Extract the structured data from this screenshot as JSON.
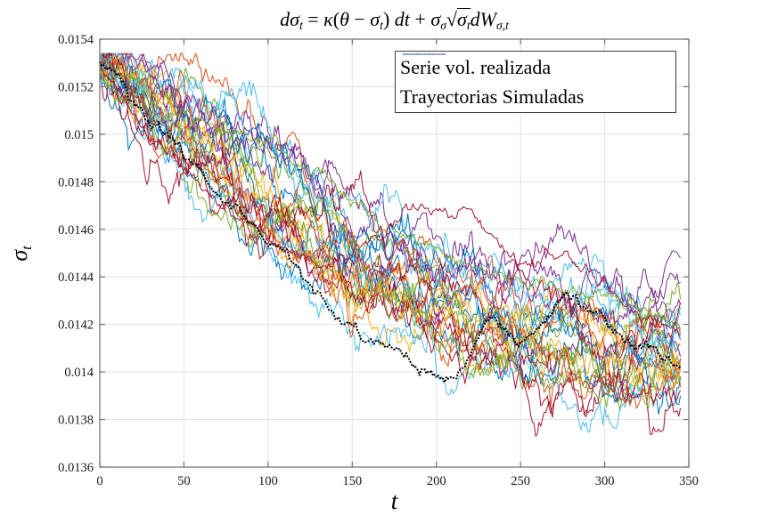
{
  "figure": {
    "title_plain": "dσt = κ(θ − σt) dt + σσ √σt dWσ,t",
    "title_parts": [
      {
        "text": "dσ",
        "style": "i"
      },
      {
        "text": "t",
        "style": "sub"
      },
      {
        "text": " = ",
        "style": "n"
      },
      {
        "text": "κ",
        "style": "i"
      },
      {
        "text": "(",
        "style": "n"
      },
      {
        "text": "θ",
        "style": "i"
      },
      {
        "text": " − ",
        "style": "n"
      },
      {
        "text": "σ",
        "style": "i"
      },
      {
        "text": "t",
        "style": "sub"
      },
      {
        "text": ") ",
        "style": "n"
      },
      {
        "text": "dt",
        "style": "i"
      },
      {
        "text": " + ",
        "style": "n"
      },
      {
        "text": "σ",
        "style": "i"
      },
      {
        "text": "σ",
        "style": "sub"
      },
      {
        "text": "√",
        "style": "n"
      },
      {
        "parts": [
          {
            "text": "σ",
            "style": "i"
          },
          {
            "text": "t",
            "style": "sub"
          }
        ]
      },
      {
        "text": "dW",
        "style": "i"
      },
      {
        "text": "σ,t",
        "style": "sub"
      }
    ],
    "x_label": "t",
    "y_label_parts": [
      {
        "text": "σ",
        "style": "i"
      },
      {
        "text": "t",
        "style": "sub"
      }
    ]
  },
  "legend": {
    "entries": [
      {
        "label": "Serie vol. realizada",
        "line_style": "dash-dot",
        "color": "#000000"
      },
      {
        "label": "Trayectorias Simuladas",
        "line_style": "solid",
        "color": "#7e96b2"
      }
    ]
  },
  "chart_data": {
    "type": "line",
    "title": "dσt = κ(θ − σt)dt + σσ√(σt)dWσ,t",
    "xlabel": "t",
    "ylabel": "σt",
    "xlim": [
      0,
      350
    ],
    "ylim": [
      0.0136,
      0.0154
    ],
    "grid": true,
    "legend_position": "top-right-inside",
    "x_ticks": [
      0,
      50,
      100,
      150,
      200,
      250,
      300,
      350
    ],
    "y_ticks": [
      {
        "value": 0.0136,
        "label": "0.0136"
      },
      {
        "value": 0.0138,
        "label": "0.0138"
      },
      {
        "value": 0.014,
        "label": "0.014"
      },
      {
        "value": 0.0142,
        "label": "0.0142"
      },
      {
        "value": 0.0144,
        "label": "0.0144"
      },
      {
        "value": 0.0146,
        "label": "0.0146"
      },
      {
        "value": 0.0148,
        "label": "0.0148"
      },
      {
        "value": 0.015,
        "label": "0.015"
      },
      {
        "value": 0.0152,
        "label": "0.0152"
      },
      {
        "value": 0.0154,
        "label": "0.0154"
      }
    ],
    "style": {
      "grid_color": "#e2e2e2",
      "axis_color": "#6e6e6e",
      "tick_label_color": "#1a1a1a",
      "background": "#ffffff"
    },
    "realized_series": {
      "name": "Serie vol. realizada",
      "style": "dotted",
      "color": "#000000",
      "t_end": 345,
      "keypoints": [
        [
          0,
          0.0153
        ],
        [
          8,
          0.01526
        ],
        [
          18,
          0.01516
        ],
        [
          24,
          0.0151
        ],
        [
          32,
          0.01505
        ],
        [
          40,
          0.015
        ],
        [
          48,
          0.01494
        ],
        [
          55,
          0.01488
        ],
        [
          64,
          0.01479
        ],
        [
          72,
          0.01474
        ],
        [
          85,
          0.01466
        ],
        [
          95,
          0.01459
        ],
        [
          104,
          0.01453
        ],
        [
          112,
          0.01449
        ],
        [
          120,
          0.01441
        ],
        [
          130,
          0.01434
        ],
        [
          143,
          0.01421
        ],
        [
          152,
          0.01418
        ],
        [
          160,
          0.01414
        ],
        [
          174,
          0.01409
        ],
        [
          185,
          0.01404
        ],
        [
          193,
          0.014
        ],
        [
          205,
          0.01396
        ],
        [
          212,
          0.01398
        ],
        [
          220,
          0.01408
        ],
        [
          228,
          0.0142
        ],
        [
          234,
          0.01424
        ],
        [
          240,
          0.01418
        ],
        [
          248,
          0.01413
        ],
        [
          255,
          0.01416
        ],
        [
          262,
          0.0142
        ],
        [
          270,
          0.01427
        ],
        [
          278,
          0.01434
        ],
        [
          284,
          0.0143
        ],
        [
          292,
          0.01426
        ],
        [
          300,
          0.01421
        ],
        [
          308,
          0.01416
        ],
        [
          316,
          0.01411
        ],
        [
          324,
          0.01412
        ],
        [
          330,
          0.01409
        ],
        [
          338,
          0.01405
        ],
        [
          345,
          0.01402
        ]
      ],
      "noise_std": 9e-06,
      "noise_rho": 0.7
    },
    "simulated_series": {
      "name": "Trayectorias Simuladas",
      "count": 30,
      "t_end": 345,
      "palette": [
        "#0072BD",
        "#D95319",
        "#EDB120",
        "#7E2F8E",
        "#77AC30",
        "#4DBEEE",
        "#A2142F"
      ],
      "seed": 42,
      "start_value": 0.01528,
      "start_jitter_std": 2.5e-05,
      "mean_keypoints": [
        [
          0,
          0.01528
        ],
        [
          25,
          0.01504
        ],
        [
          50,
          0.01486
        ],
        [
          75,
          0.0147
        ],
        [
          100,
          0.01455
        ],
        [
          125,
          0.01443
        ],
        [
          150,
          0.01433
        ],
        [
          175,
          0.01425
        ],
        [
          200,
          0.01418
        ],
        [
          225,
          0.01413
        ],
        [
          250,
          0.0141
        ],
        [
          275,
          0.01407
        ],
        [
          300,
          0.01405
        ],
        [
          325,
          0.01404
        ],
        [
          345,
          0.01403
        ]
      ],
      "offset_std": 0.00012,
      "mean_reversion": 0.035,
      "step_noise_std": 2.8e-05,
      "value_clamp": [
        0.01366,
        0.01534
      ],
      "feature_paths": [
        {
          "color": "#77AC30",
          "noise_std": 1.2e-05,
          "keypoints": [
            [
              0,
              0.0153
            ],
            [
              20,
              0.0152
            ],
            [
              40,
              0.01512
            ],
            [
              60,
              0.01506
            ],
            [
              80,
              0.015
            ],
            [
              95,
              0.01497
            ],
            [
              100,
              0.01499
            ],
            [
              110,
              0.01492
            ],
            [
              125,
              0.01486
            ],
            [
              140,
              0.01477
            ],
            [
              155,
              0.0147
            ],
            [
              170,
              0.01461
            ],
            [
              185,
              0.01457
            ],
            [
              200,
              0.01449
            ],
            [
              212,
              0.01446
            ],
            [
              230,
              0.01442
            ],
            [
              250,
              0.0144
            ],
            [
              270,
              0.01437
            ],
            [
              290,
              0.01434
            ],
            [
              310,
              0.01428
            ],
            [
              330,
              0.01424
            ],
            [
              345,
              0.01421
            ]
          ]
        },
        {
          "color": "#A2142F",
          "noise_std": 1.2e-05,
          "keypoints": [
            [
              0,
              0.01528
            ],
            [
              30,
              0.015
            ],
            [
              60,
              0.01478
            ],
            [
              90,
              0.0146
            ],
            [
              110,
              0.0145
            ],
            [
              130,
              0.01444
            ],
            [
              150,
              0.0145
            ],
            [
              165,
              0.01458
            ],
            [
              180,
              0.01466
            ],
            [
              192,
              0.01472
            ],
            [
              200,
              0.01468
            ],
            [
              210,
              0.01465
            ],
            [
              218,
              0.0147
            ],
            [
              228,
              0.01462
            ],
            [
              240,
              0.01452
            ],
            [
              255,
              0.01444
            ],
            [
              268,
              0.0145
            ],
            [
              280,
              0.01446
            ],
            [
              292,
              0.0144
            ],
            [
              305,
              0.01434
            ],
            [
              318,
              0.01426
            ],
            [
              330,
              0.01421
            ],
            [
              345,
              0.01417
            ]
          ]
        }
      ]
    }
  }
}
